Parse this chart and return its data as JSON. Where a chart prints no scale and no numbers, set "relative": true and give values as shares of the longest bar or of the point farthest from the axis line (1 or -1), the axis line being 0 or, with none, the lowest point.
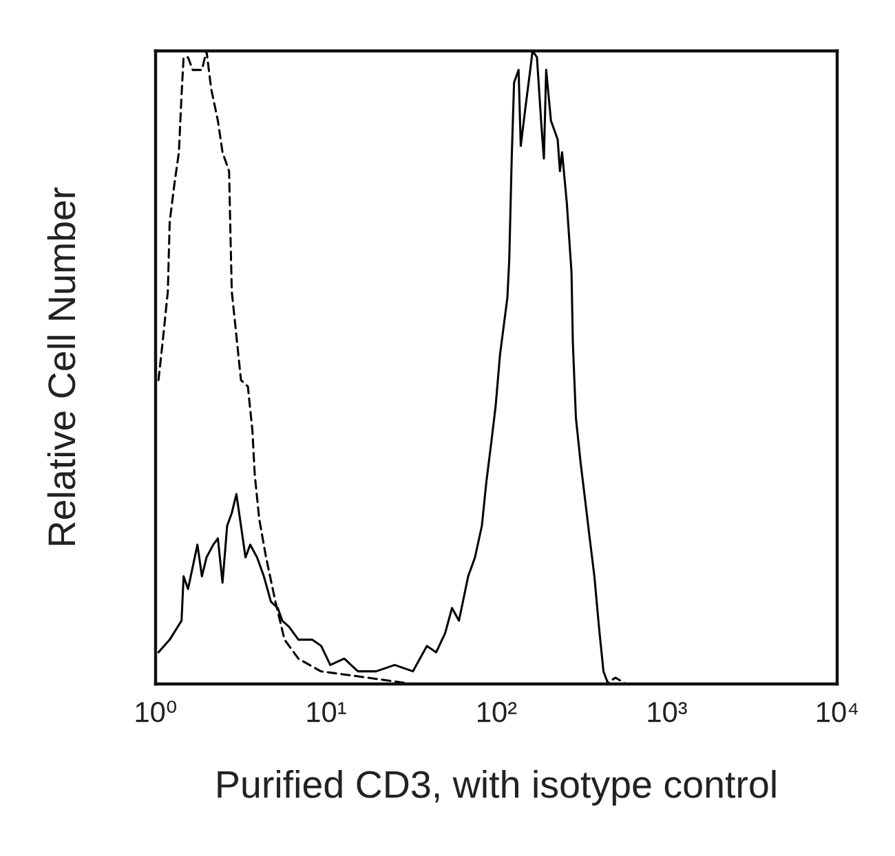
{
  "chart_data": {
    "type": "line",
    "relative": true,
    "log": "x",
    "xlabel": "Purified CD3, with isotype control",
    "ylabel": "Relative Cell Number",
    "xlim": [
      1,
      10000
    ],
    "xticks": [
      {
        "value": 1,
        "label": "10⁰"
      },
      {
        "value": 10,
        "label": "10¹"
      },
      {
        "value": 100,
        "label": "10²"
      },
      {
        "value": 1000,
        "label": "10³"
      },
      {
        "value": 10000,
        "label": "10⁴"
      }
    ],
    "series": [
      {
        "color": "#000000",
        "line_style": "solid",
        "x": [
          1.04,
          1.21,
          1.42,
          1.46,
          1.55,
          1.76,
          1.87,
          1.99,
          2.18,
          2.32,
          2.47,
          2.63,
          2.8,
          2.98,
          3.17,
          3.37,
          3.59,
          3.94,
          4.32,
          4.75,
          5.21,
          5.54,
          6.08,
          6.89,
          8.29,
          9.38,
          10.6,
          12.8,
          15.4,
          19.7,
          25.3,
          32.4,
          39.1,
          44.3,
          50.0,
          54.9,
          60.3,
          68.3,
          74.9,
          82.2,
          87.4,
          93.2,
          99.1,
          105,
          116,
          119,
          123,
          127,
          135,
          139,
          148,
          158,
          163,
          173,
          184,
          190,
          196,
          209,
          229,
          236,
          243,
          259,
          276,
          281,
          293,
          312,
          332,
          353,
          376,
          400,
          425,
          453,
          482
        ],
        "values": [
          0.05,
          0.07,
          0.1,
          0.17,
          0.15,
          0.22,
          0.17,
          0.2,
          0.22,
          0.23,
          0.16,
          0.25,
          0.27,
          0.3,
          0.25,
          0.2,
          0.22,
          0.2,
          0.17,
          0.13,
          0.12,
          0.1,
          0.09,
          0.07,
          0.07,
          0.06,
          0.03,
          0.04,
          0.02,
          0.02,
          0.03,
          0.02,
          0.06,
          0.05,
          0.08,
          0.12,
          0.1,
          0.17,
          0.2,
          0.25,
          0.32,
          0.38,
          0.44,
          0.52,
          0.61,
          0.67,
          0.83,
          0.95,
          0.97,
          0.85,
          0.91,
          0.97,
          1.0,
          0.99,
          0.88,
          0.83,
          0.97,
          0.89,
          0.86,
          0.81,
          0.84,
          0.76,
          0.65,
          0.54,
          0.42,
          0.35,
          0.29,
          0.23,
          0.17,
          0.09,
          0.02,
          0.0,
          0.0
        ]
      },
      {
        "color": "#000000",
        "line_style": "dashed",
        "x": [
          1.04,
          1.1,
          1.18,
          1.21,
          1.29,
          1.37,
          1.42,
          1.46,
          1.55,
          1.65,
          1.87,
          1.99,
          2.12,
          2.32,
          2.47,
          2.7,
          2.75,
          2.8,
          2.98,
          3.17,
          3.48,
          3.7,
          3.82,
          4.06,
          4.45,
          5.05,
          5.71,
          6.89,
          9.33,
          17.5,
          32.4,
          47.1,
          439,
          500,
          575
        ],
        "values": [
          0.48,
          0.54,
          0.62,
          0.73,
          0.79,
          0.84,
          0.93,
          0.99,
          0.99,
          0.97,
          0.97,
          1.0,
          0.94,
          0.89,
          0.84,
          0.81,
          0.71,
          0.62,
          0.55,
          0.48,
          0.47,
          0.4,
          0.33,
          0.26,
          0.2,
          0.13,
          0.07,
          0.04,
          0.02,
          0.01,
          0.0,
          0.0,
          0.0,
          0.01,
          0.0
        ]
      }
    ]
  }
}
